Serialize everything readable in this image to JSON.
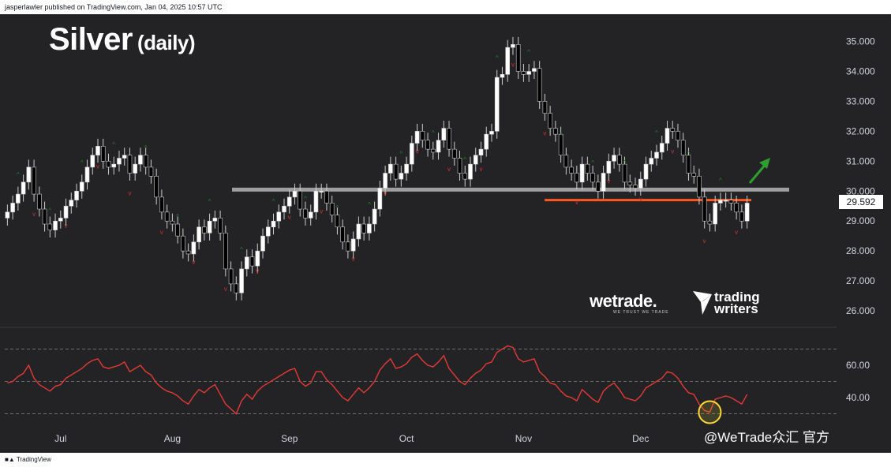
{
  "header": {
    "text": "jasperlawler published on TradingView.com, Jan 04, 2025 10:57 UTC"
  },
  "title": {
    "main": "Silver",
    "sub": "(daily)"
  },
  "footer": {
    "brand": "TradingView"
  },
  "logos": {
    "wetrade": "wetrade.",
    "wetrade_tagline": "WE TRUST WE TRADE",
    "trading_writers_1": "trading",
    "trading_writers_2": "writers"
  },
  "watermark": "@WeTrade众汇 官方",
  "colors": {
    "up": "#ffffff",
    "down": "#000000",
    "wick": "#cccccc",
    "rsi": "#e53935",
    "resistance": "#9e9e9e",
    "support": "#ff5722",
    "arrow": "#2e9e2e",
    "marker_up": "#1b8a1b",
    "marker_down": "#d32f2f"
  },
  "chart_data": [
    {
      "type": "candlestick",
      "title": "Silver (daily)",
      "y_ticks": [
        "35.000",
        "34.000",
        "33.000",
        "32.000",
        "31.000",
        "30.000",
        "29.000",
        "28.000",
        "27.000",
        "26.000"
      ],
      "ylim": [
        25.5,
        35.7
      ],
      "x_ticks": [
        "Jul",
        "Aug",
        "Sep",
        "Oct",
        "Nov",
        "Dec"
      ],
      "last_price": "29.592",
      "horizontal_levels": [
        {
          "name": "resistance",
          "value": 30.05
        },
        {
          "name": "support",
          "value": 29.7
        }
      ],
      "close": [
        29.3,
        29.6,
        29.9,
        30.3,
        30.8,
        29.9,
        29.4,
        28.9,
        28.7,
        29.0,
        29.1,
        29.5,
        29.7,
        30.0,
        30.3,
        30.8,
        31.2,
        31.5,
        31.0,
        30.8,
        30.9,
        31.1,
        31.2,
        30.6,
        30.9,
        31.2,
        30.8,
        30.5,
        29.8,
        29.3,
        29.0,
        28.9,
        28.5,
        28.0,
        27.9,
        28.3,
        28.8,
        28.6,
        29.0,
        29.1,
        28.6,
        27.4,
        26.9,
        26.6,
        27.4,
        27.8,
        27.5,
        28.0,
        28.5,
        28.8,
        29.0,
        29.3,
        29.5,
        29.8,
        30.0,
        29.4,
        29.1,
        29.3,
        30.0,
        30.0,
        29.6,
        29.2,
        28.8,
        28.3,
        28.0,
        28.4,
        28.9,
        28.6,
        28.9,
        29.4,
        30.1,
        30.6,
        30.9,
        30.4,
        30.6,
        30.9,
        31.6,
        32.0,
        31.7,
        31.4,
        31.3,
        31.7,
        32.1,
        31.4,
        31.1,
        30.6,
        30.4,
        30.9,
        31.2,
        31.4,
        31.9,
        32.0,
        33.8,
        33.9,
        34.8,
        34.9,
        34.0,
        33.9,
        34.0,
        34.1,
        33.0,
        32.6,
        32.1,
        31.9,
        31.2,
        30.8,
        30.6,
        30.3,
        30.9,
        30.6,
        30.3,
        30.0,
        30.6,
        31.0,
        31.2,
        30.9,
        30.3,
        30.2,
        30.1,
        30.4,
        30.9,
        31.1,
        31.3,
        31.6,
        32.1,
        32.0,
        31.7,
        31.2,
        30.6,
        30.5,
        29.8,
        29.0,
        28.9,
        29.6,
        29.7,
        29.7,
        29.6,
        29.3,
        29.0,
        29.6
      ],
      "rsi": {
        "y_ticks": [
          "60.00",
          "40.00"
        ],
        "levels": [
          70,
          50,
          30
        ],
        "ylim": [
          20,
          80
        ],
        "values": [
          49,
          50,
          53,
          55,
          60,
          52,
          48,
          46,
          44,
          47,
          48,
          52,
          54,
          56,
          58,
          61,
          63,
          64,
          59,
          58,
          59,
          60,
          62,
          56,
          58,
          60,
          56,
          54,
          49,
          46,
          44,
          43,
          41,
          38,
          36,
          41,
          45,
          43,
          46,
          48,
          42,
          36,
          33,
          30,
          38,
          42,
          39,
          44,
          47,
          49,
          51,
          53,
          55,
          57,
          58,
          50,
          47,
          49,
          56,
          56,
          51,
          48,
          44,
          40,
          38,
          42,
          46,
          43,
          46,
          50,
          57,
          61,
          64,
          58,
          59,
          61,
          65,
          67,
          63,
          60,
          59,
          62,
          66,
          58,
          54,
          50,
          48,
          52,
          55,
          57,
          61,
          62,
          68,
          70,
          72,
          71,
          64,
          62,
          63,
          64,
          56,
          53,
          49,
          48,
          44,
          41,
          40,
          38,
          45,
          42,
          39,
          37,
          44,
          47,
          49,
          45,
          40,
          39,
          38,
          41,
          46,
          48,
          50,
          52,
          56,
          55,
          52,
          47,
          43,
          42,
          36,
          32,
          31,
          39,
          40,
          41,
          40,
          38,
          36,
          42
        ]
      }
    }
  ]
}
